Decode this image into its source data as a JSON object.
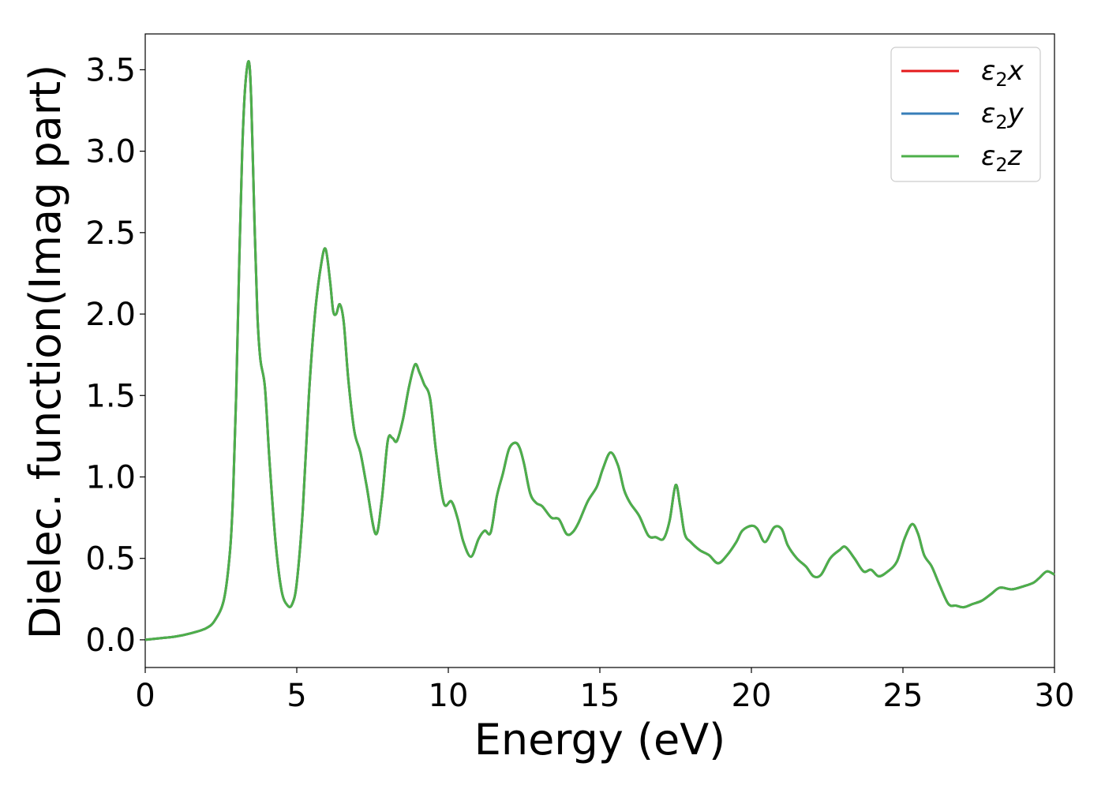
{
  "chart_data": {
    "type": "line",
    "xlabel": "Energy (eV)",
    "ylabel": "Dielec. function(Imag part)",
    "xlim": [
      0,
      30
    ],
    "ylim": [
      -0.17,
      3.72
    ],
    "xticks": [
      0,
      5,
      10,
      15,
      20,
      25,
      30
    ],
    "yticks": [
      0.0,
      0.5,
      1.0,
      1.5,
      2.0,
      2.5,
      3.0,
      3.5
    ],
    "ytick_labels": [
      "0.0",
      "0.5",
      "1.0",
      "1.5",
      "2.0",
      "2.5",
      "3.0",
      "3.5"
    ],
    "grid": false,
    "legend_position": "top-right",
    "series": [
      {
        "name": "ε₂x",
        "base": "ε",
        "sub": "2",
        "var": "x",
        "color": "#e41a1c",
        "data_ref": "shared"
      },
      {
        "name": "ε₂y",
        "base": "ε",
        "sub": "2",
        "var": "y",
        "color": "#377eb8",
        "data_ref": "shared"
      },
      {
        "name": "ε₂z",
        "base": "ε",
        "sub": "2",
        "var": "z",
        "color": "#4daf4a",
        "data_ref": "shared"
      }
    ],
    "x": [
      0,
      0.5,
      1.0,
      1.5,
      2.0,
      2.3,
      2.6,
      2.8,
      2.9,
      3.0,
      3.1,
      3.2,
      3.3,
      3.42,
      3.5,
      3.6,
      3.7,
      3.8,
      3.95,
      4.1,
      4.3,
      4.5,
      4.7,
      4.85,
      5.0,
      5.2,
      5.4,
      5.6,
      5.8,
      5.95,
      6.1,
      6.2,
      6.3,
      6.42,
      6.55,
      6.7,
      6.9,
      7.1,
      7.3,
      7.6,
      7.8,
      8.0,
      8.15,
      8.3,
      8.5,
      8.7,
      8.9,
      9.05,
      9.2,
      9.4,
      9.6,
      9.85,
      10.1,
      10.3,
      10.5,
      10.75,
      11.0,
      11.2,
      11.4,
      11.6,
      11.8,
      12.0,
      12.2,
      12.35,
      12.5,
      12.7,
      12.9,
      13.1,
      13.4,
      13.65,
      13.9,
      14.1,
      14.3,
      14.6,
      14.9,
      15.1,
      15.35,
      15.6,
      15.8,
      16.0,
      16.3,
      16.6,
      16.85,
      17.1,
      17.3,
      17.5,
      17.65,
      17.8,
      18.0,
      18.3,
      18.6,
      18.9,
      19.2,
      19.5,
      19.7,
      20.0,
      20.2,
      20.45,
      20.75,
      21.0,
      21.2,
      21.5,
      21.8,
      22.05,
      22.3,
      22.6,
      22.9,
      23.1,
      23.4,
      23.7,
      23.95,
      24.2,
      24.5,
      24.8,
      25.05,
      25.3,
      25.5,
      25.7,
      25.95,
      26.2,
      26.5,
      26.75,
      27.0,
      27.3,
      27.6,
      27.9,
      28.2,
      28.6,
      29.0,
      29.3,
      29.5,
      29.75,
      30.0
    ],
    "y": [
      0.0,
      0.01,
      0.02,
      0.04,
      0.07,
      0.12,
      0.25,
      0.55,
      0.9,
      1.5,
      2.3,
      3.0,
      3.4,
      3.55,
      3.3,
      2.6,
      2.0,
      1.72,
      1.55,
      1.1,
      0.6,
      0.3,
      0.21,
      0.22,
      0.35,
      0.8,
      1.5,
      2.0,
      2.3,
      2.4,
      2.2,
      2.02,
      2.0,
      2.06,
      1.95,
      1.6,
      1.28,
      1.15,
      0.95,
      0.65,
      0.85,
      1.22,
      1.24,
      1.22,
      1.35,
      1.55,
      1.69,
      1.64,
      1.57,
      1.48,
      1.15,
      0.84,
      0.85,
      0.75,
      0.6,
      0.51,
      0.62,
      0.67,
      0.66,
      0.88,
      1.02,
      1.17,
      1.21,
      1.18,
      1.08,
      0.9,
      0.84,
      0.82,
      0.75,
      0.74,
      0.65,
      0.66,
      0.72,
      0.85,
      0.94,
      1.05,
      1.15,
      1.07,
      0.92,
      0.84,
      0.76,
      0.64,
      0.63,
      0.62,
      0.73,
      0.95,
      0.82,
      0.65,
      0.6,
      0.55,
      0.52,
      0.47,
      0.52,
      0.6,
      0.67,
      0.7,
      0.68,
      0.6,
      0.69,
      0.68,
      0.58,
      0.5,
      0.45,
      0.39,
      0.4,
      0.5,
      0.55,
      0.57,
      0.5,
      0.42,
      0.43,
      0.39,
      0.42,
      0.48,
      0.62,
      0.71,
      0.65,
      0.52,
      0.45,
      0.34,
      0.22,
      0.21,
      0.2,
      0.22,
      0.24,
      0.28,
      0.32,
      0.31,
      0.33,
      0.35,
      0.38,
      0.42,
      0.4
    ]
  }
}
